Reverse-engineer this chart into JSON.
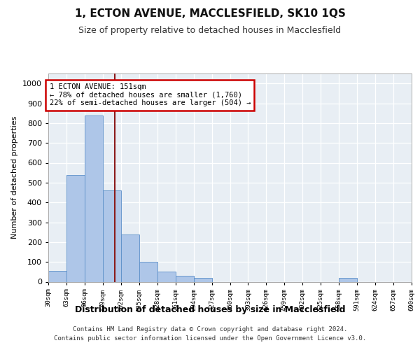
{
  "title1": "1, ECTON AVENUE, MACCLESFIELD, SK10 1QS",
  "title2": "Size of property relative to detached houses in Macclesfield",
  "xlabel": "Distribution of detached houses by size in Macclesfield",
  "ylabel": "Number of detached properties",
  "property_sqm": 151,
  "bin_edges": [
    30,
    63,
    96,
    129,
    162,
    195,
    228,
    261,
    294,
    327,
    360,
    393,
    426,
    459,
    492,
    525,
    558,
    591,
    624,
    657,
    690
  ],
  "bar_heights": [
    55,
    540,
    840,
    460,
    240,
    100,
    50,
    30,
    20,
    0,
    0,
    0,
    0,
    0,
    0,
    0,
    20,
    0,
    0,
    0
  ],
  "bar_color": "#aec6e8",
  "bar_edge_color": "#5b8fc9",
  "vline_x": 151,
  "vline_color": "#8b1a1a",
  "annotation_text": "1 ECTON AVENUE: 151sqm\n← 78% of detached houses are smaller (1,760)\n22% of semi-detached houses are larger (504) →",
  "annotation_box_color": "white",
  "annotation_box_edge_color": "#cc0000",
  "footer_text": "Contains HM Land Registry data © Crown copyright and database right 2024.\nContains public sector information licensed under the Open Government Licence v3.0.",
  "ylim": [
    0,
    1050
  ],
  "background_color": "#e8eef4",
  "grid_color": "white",
  "yticks": [
    0,
    100,
    200,
    300,
    400,
    500,
    600,
    700,
    800,
    900,
    1000
  ]
}
